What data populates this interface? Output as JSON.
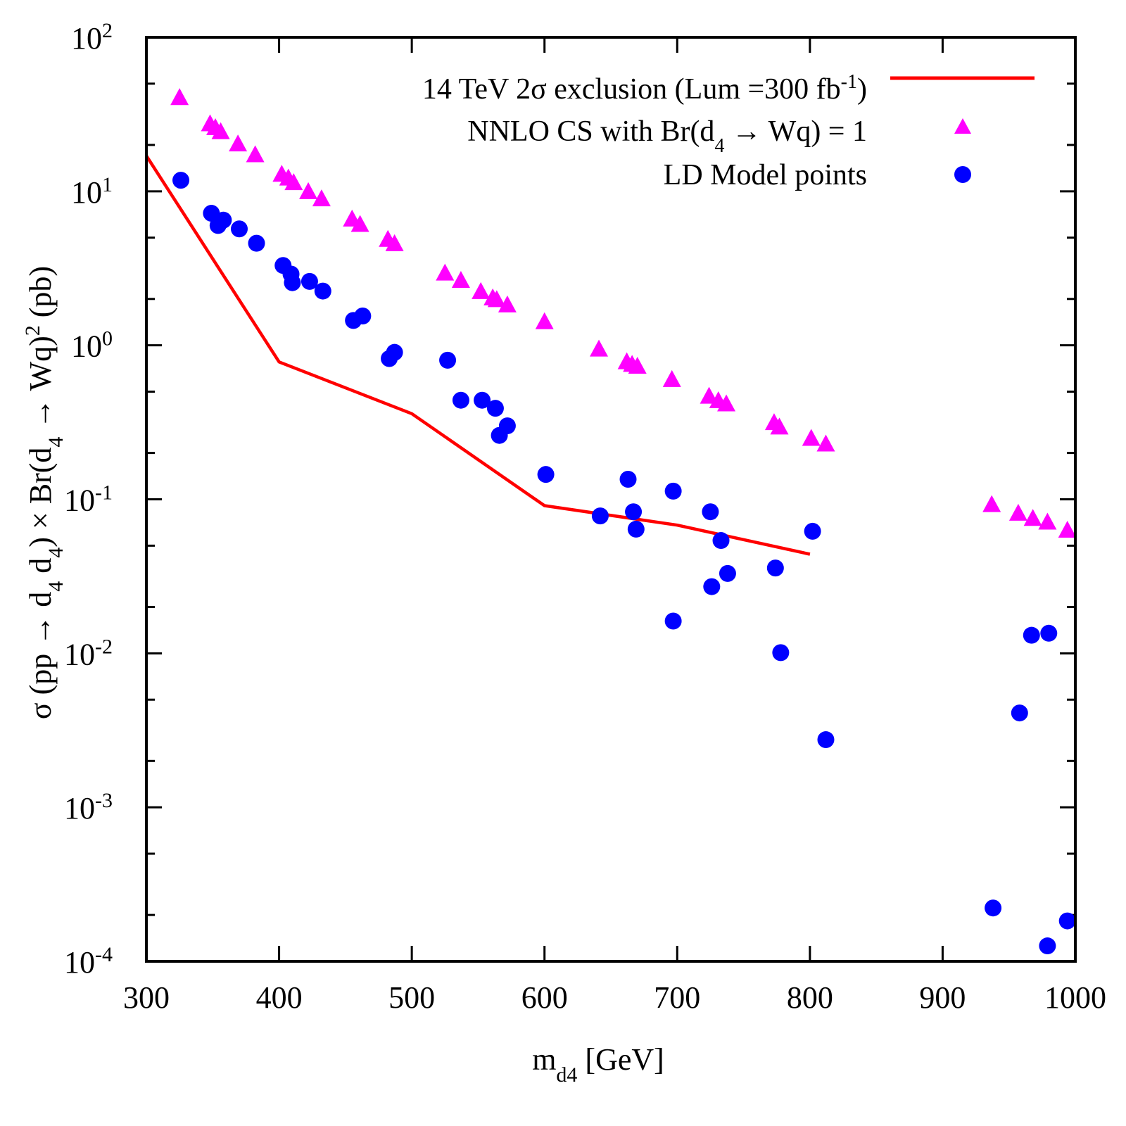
{
  "chart_data": {
    "type": "scatter",
    "xlabel": {
      "main": "m",
      "sub": "d4",
      "unit": " [GeV]"
    },
    "ylabel": "σ (pp → d4 d4) × Br(d4 → Wq)² (pb)",
    "ylabel_parts": {
      "p1": "σ (pp  → d",
      "s1": "4",
      "p2": " d",
      "s2": "4",
      "p3": ") × Br(d",
      "s3": "4",
      "p4": " → Wq)",
      "sup": "2",
      "p5": " (pb)"
    },
    "xlim": [
      300,
      1000
    ],
    "ylim": [
      0.0001,
      100
    ],
    "yscale": "log",
    "x_ticks": [
      300,
      400,
      500,
      600,
      700,
      800,
      900,
      1000
    ],
    "x_tick_labels": [
      "300",
      "400",
      "500",
      "600",
      "700",
      "800",
      "900",
      "1000"
    ],
    "y_ticks": [
      {
        "value": 100,
        "base": "10",
        "exp": "2"
      },
      {
        "value": 10,
        "base": "10",
        "exp": "1"
      },
      {
        "value": 1,
        "base": "10",
        "exp": "0"
      },
      {
        "value": 0.1,
        "base": "10",
        "exp": "-1"
      },
      {
        "value": 0.01,
        "base": "10",
        "exp": "-2"
      },
      {
        "value": 0.001,
        "base": "10",
        "exp": "-3"
      },
      {
        "value": 0.0001,
        "base": "10",
        "exp": "-4"
      }
    ],
    "legend": {
      "placement": "top-right",
      "entries": [
        {
          "series": "exclusion",
          "parts": {
            "p1": "14 TeV 2σ exclusion (Lum =300 fb",
            "sup": "-1",
            "p2": ")"
          }
        },
        {
          "series": "nnlo",
          "parts": {
            "p1": "NNLO CS with Br(d",
            "sub": "4",
            "p2": " → Wq) = 1"
          }
        },
        {
          "series": "ld",
          "parts": {
            "p1": "LD Model points"
          }
        }
      ]
    },
    "series": [
      {
        "name": "14 TeV 2σ exclusion (Lum =300 fb-1)",
        "id": "exclusion",
        "kind": "line",
        "color": "#ff0000",
        "points": [
          [
            300,
            17
          ],
          [
            400,
            0.78
          ],
          [
            500,
            0.36
          ],
          [
            600,
            0.091
          ],
          [
            700,
            0.068
          ],
          [
            800,
            0.044
          ]
        ]
      },
      {
        "name": "NNLO CS with Br(d4 → Wq) = 1",
        "id": "nnlo",
        "kind": "triangle",
        "color": "#ff00ff",
        "points": [
          [
            325,
            40
          ],
          [
            348,
            27
          ],
          [
            352,
            25.5
          ],
          [
            356,
            24
          ],
          [
            369,
            20
          ],
          [
            382,
            17
          ],
          [
            402,
            12.7
          ],
          [
            407,
            12
          ],
          [
            411,
            11.2
          ],
          [
            422,
            9.8
          ],
          [
            432,
            8.8
          ],
          [
            455,
            6.5
          ],
          [
            461,
            6.0
          ],
          [
            482,
            4.8
          ],
          [
            487,
            4.5
          ],
          [
            525,
            2.9
          ],
          [
            537,
            2.6
          ],
          [
            552,
            2.2
          ],
          [
            561,
            2.0
          ],
          [
            564,
            1.95
          ],
          [
            572,
            1.8
          ],
          [
            600,
            1.4
          ],
          [
            641,
            0.93
          ],
          [
            662,
            0.77
          ],
          [
            666,
            0.74
          ],
          [
            670,
            0.72
          ],
          [
            696,
            0.59
          ],
          [
            724,
            0.46
          ],
          [
            731,
            0.43
          ],
          [
            737,
            0.41
          ],
          [
            773,
            0.31
          ],
          [
            777,
            0.29
          ],
          [
            801,
            0.245
          ],
          [
            812,
            0.225
          ],
          [
            937,
            0.091
          ],
          [
            957,
            0.08
          ],
          [
            968,
            0.074
          ],
          [
            979,
            0.07
          ],
          [
            994,
            0.062
          ]
        ]
      },
      {
        "name": "LD Model points",
        "id": "ld",
        "kind": "circle",
        "color": "#0000ff",
        "points": [
          [
            326,
            11.8
          ],
          [
            349,
            7.2
          ],
          [
            354,
            6.0
          ],
          [
            358,
            6.5
          ],
          [
            370,
            5.7
          ],
          [
            383,
            4.6
          ],
          [
            403,
            3.3
          ],
          [
            409,
            2.9
          ],
          [
            410,
            2.55
          ],
          [
            423,
            2.6
          ],
          [
            433,
            2.25
          ],
          [
            456,
            1.45
          ],
          [
            463,
            1.55
          ],
          [
            483,
            0.82
          ],
          [
            487,
            0.9
          ],
          [
            527,
            0.8
          ],
          [
            537,
            0.44
          ],
          [
            553,
            0.44
          ],
          [
            563,
            0.39
          ],
          [
            566,
            0.26
          ],
          [
            572,
            0.3
          ],
          [
            601,
            0.145
          ],
          [
            642,
            0.078
          ],
          [
            663,
            0.135
          ],
          [
            667,
            0.083
          ],
          [
            669,
            0.064
          ],
          [
            697,
            0.113
          ],
          [
            697,
            0.0162
          ],
          [
            725,
            0.083
          ],
          [
            726,
            0.0271
          ],
          [
            733,
            0.054
          ],
          [
            738,
            0.033
          ],
          [
            774,
            0.0358
          ],
          [
            778,
            0.0101
          ],
          [
            802,
            0.062
          ],
          [
            812,
            0.00275
          ],
          [
            938,
            0.000222
          ],
          [
            958,
            0.0041
          ],
          [
            967,
            0.0131
          ],
          [
            980,
            0.0135
          ],
          [
            979,
            0.000126
          ],
          [
            994,
            0.000183
          ]
        ]
      }
    ]
  }
}
